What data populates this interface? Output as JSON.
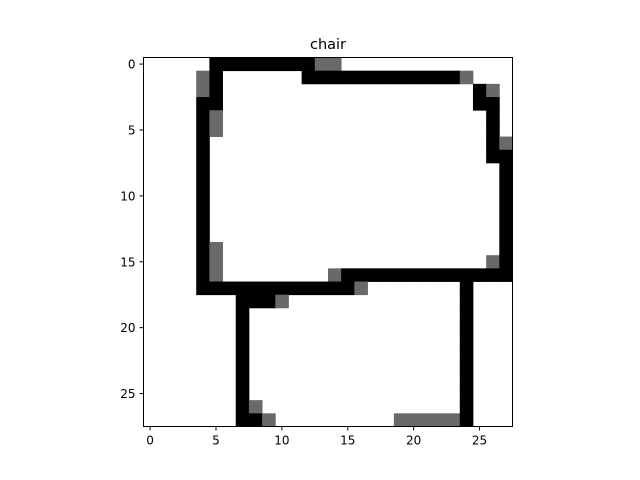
{
  "chart_data": {
    "type": "heatmap",
    "title": "chair",
    "xlabel": "",
    "ylabel": "",
    "grid": false,
    "colormap": "gray_r",
    "value_range": [
      0,
      255
    ],
    "grid_shape": [
      28,
      28
    ],
    "xlim": [
      -0.5,
      27.5
    ],
    "ylim": [
      27.5,
      -0.5
    ],
    "x_ticks": [
      0,
      5,
      10,
      15,
      20,
      25
    ],
    "y_ticks": [
      0,
      5,
      10,
      15,
      20,
      25
    ],
    "colors": {
      "full": "#000000",
      "partial": "#666666",
      "background": "#ffffff",
      "axis": "#000000"
    },
    "cells": [
      {
        "r": 0,
        "c": 5,
        "v": 255
      },
      {
        "r": 0,
        "c": 6,
        "v": 255
      },
      {
        "r": 0,
        "c": 7,
        "v": 255
      },
      {
        "r": 0,
        "c": 8,
        "v": 255
      },
      {
        "r": 0,
        "c": 9,
        "v": 255
      },
      {
        "r": 0,
        "c": 10,
        "v": 255
      },
      {
        "r": 0,
        "c": 11,
        "v": 255
      },
      {
        "r": 0,
        "c": 12,
        "v": 255
      },
      {
        "r": 0,
        "c": 13,
        "v": 150
      },
      {
        "r": 0,
        "c": 14,
        "v": 150
      },
      {
        "r": 1,
        "c": 4,
        "v": 150
      },
      {
        "r": 1,
        "c": 5,
        "v": 255
      },
      {
        "r": 1,
        "c": 12,
        "v": 255
      },
      {
        "r": 1,
        "c": 13,
        "v": 255
      },
      {
        "r": 1,
        "c": 14,
        "v": 255
      },
      {
        "r": 1,
        "c": 15,
        "v": 255
      },
      {
        "r": 1,
        "c": 16,
        "v": 255
      },
      {
        "r": 1,
        "c": 17,
        "v": 255
      },
      {
        "r": 1,
        "c": 18,
        "v": 255
      },
      {
        "r": 1,
        "c": 19,
        "v": 255
      },
      {
        "r": 1,
        "c": 20,
        "v": 255
      },
      {
        "r": 1,
        "c": 21,
        "v": 255
      },
      {
        "r": 1,
        "c": 22,
        "v": 255
      },
      {
        "r": 1,
        "c": 23,
        "v": 255
      },
      {
        "r": 1,
        "c": 24,
        "v": 150
      },
      {
        "r": 2,
        "c": 4,
        "v": 150
      },
      {
        "r": 2,
        "c": 5,
        "v": 255
      },
      {
        "r": 2,
        "c": 25,
        "v": 255
      },
      {
        "r": 2,
        "c": 26,
        "v": 150
      },
      {
        "r": 3,
        "c": 4,
        "v": 255
      },
      {
        "r": 3,
        "c": 5,
        "v": 255
      },
      {
        "r": 3,
        "c": 25,
        "v": 255
      },
      {
        "r": 3,
        "c": 26,
        "v": 255
      },
      {
        "r": 4,
        "c": 4,
        "v": 255
      },
      {
        "r": 4,
        "c": 5,
        "v": 150
      },
      {
        "r": 4,
        "c": 26,
        "v": 255
      },
      {
        "r": 5,
        "c": 4,
        "v": 255
      },
      {
        "r": 5,
        "c": 5,
        "v": 150
      },
      {
        "r": 5,
        "c": 26,
        "v": 255
      },
      {
        "r": 6,
        "c": 4,
        "v": 255
      },
      {
        "r": 6,
        "c": 26,
        "v": 255
      },
      {
        "r": 6,
        "c": 27,
        "v": 150
      },
      {
        "r": 7,
        "c": 4,
        "v": 255
      },
      {
        "r": 7,
        "c": 26,
        "v": 255
      },
      {
        "r": 7,
        "c": 27,
        "v": 255
      },
      {
        "r": 8,
        "c": 4,
        "v": 255
      },
      {
        "r": 8,
        "c": 27,
        "v": 255
      },
      {
        "r": 9,
        "c": 4,
        "v": 255
      },
      {
        "r": 9,
        "c": 27,
        "v": 255
      },
      {
        "r": 10,
        "c": 4,
        "v": 255
      },
      {
        "r": 10,
        "c": 27,
        "v": 255
      },
      {
        "r": 11,
        "c": 4,
        "v": 255
      },
      {
        "r": 11,
        "c": 27,
        "v": 255
      },
      {
        "r": 12,
        "c": 4,
        "v": 255
      },
      {
        "r": 12,
        "c": 27,
        "v": 255
      },
      {
        "r": 13,
        "c": 4,
        "v": 255
      },
      {
        "r": 13,
        "c": 27,
        "v": 255
      },
      {
        "r": 14,
        "c": 4,
        "v": 255
      },
      {
        "r": 14,
        "c": 5,
        "v": 150
      },
      {
        "r": 14,
        "c": 27,
        "v": 255
      },
      {
        "r": 15,
        "c": 4,
        "v": 255
      },
      {
        "r": 15,
        "c": 5,
        "v": 150
      },
      {
        "r": 15,
        "c": 26,
        "v": 150
      },
      {
        "r": 15,
        "c": 27,
        "v": 255
      },
      {
        "r": 16,
        "c": 4,
        "v": 255
      },
      {
        "r": 16,
        "c": 5,
        "v": 150
      },
      {
        "r": 16,
        "c": 14,
        "v": 150
      },
      {
        "r": 16,
        "c": 15,
        "v": 255
      },
      {
        "r": 16,
        "c": 16,
        "v": 255
      },
      {
        "r": 16,
        "c": 17,
        "v": 255
      },
      {
        "r": 16,
        "c": 18,
        "v": 255
      },
      {
        "r": 16,
        "c": 19,
        "v": 255
      },
      {
        "r": 16,
        "c": 20,
        "v": 255
      },
      {
        "r": 16,
        "c": 21,
        "v": 255
      },
      {
        "r": 16,
        "c": 22,
        "v": 255
      },
      {
        "r": 16,
        "c": 23,
        "v": 255
      },
      {
        "r": 16,
        "c": 24,
        "v": 255
      },
      {
        "r": 16,
        "c": 25,
        "v": 255
      },
      {
        "r": 16,
        "c": 26,
        "v": 255
      },
      {
        "r": 16,
        "c": 27,
        "v": 255
      },
      {
        "r": 17,
        "c": 4,
        "v": 255
      },
      {
        "r": 17,
        "c": 5,
        "v": 255
      },
      {
        "r": 17,
        "c": 6,
        "v": 255
      },
      {
        "r": 17,
        "c": 7,
        "v": 255
      },
      {
        "r": 17,
        "c": 8,
        "v": 255
      },
      {
        "r": 17,
        "c": 9,
        "v": 255
      },
      {
        "r": 17,
        "c": 10,
        "v": 255
      },
      {
        "r": 17,
        "c": 11,
        "v": 255
      },
      {
        "r": 17,
        "c": 12,
        "v": 255
      },
      {
        "r": 17,
        "c": 13,
        "v": 255
      },
      {
        "r": 17,
        "c": 14,
        "v": 255
      },
      {
        "r": 17,
        "c": 15,
        "v": 255
      },
      {
        "r": 17,
        "c": 16,
        "v": 150
      },
      {
        "r": 17,
        "c": 24,
        "v": 255
      },
      {
        "r": 18,
        "c": 7,
        "v": 255
      },
      {
        "r": 18,
        "c": 8,
        "v": 255
      },
      {
        "r": 18,
        "c": 9,
        "v": 255
      },
      {
        "r": 18,
        "c": 10,
        "v": 150
      },
      {
        "r": 18,
        "c": 24,
        "v": 255
      },
      {
        "r": 19,
        "c": 7,
        "v": 255
      },
      {
        "r": 19,
        "c": 24,
        "v": 255
      },
      {
        "r": 20,
        "c": 7,
        "v": 255
      },
      {
        "r": 20,
        "c": 24,
        "v": 255
      },
      {
        "r": 21,
        "c": 7,
        "v": 255
      },
      {
        "r": 21,
        "c": 24,
        "v": 255
      },
      {
        "r": 22,
        "c": 7,
        "v": 255
      },
      {
        "r": 22,
        "c": 24,
        "v": 255
      },
      {
        "r": 23,
        "c": 7,
        "v": 255
      },
      {
        "r": 23,
        "c": 24,
        "v": 255
      },
      {
        "r": 24,
        "c": 7,
        "v": 255
      },
      {
        "r": 24,
        "c": 24,
        "v": 255
      },
      {
        "r": 25,
        "c": 7,
        "v": 255
      },
      {
        "r": 25,
        "c": 24,
        "v": 255
      },
      {
        "r": 26,
        "c": 7,
        "v": 255
      },
      {
        "r": 26,
        "c": 8,
        "v": 150
      },
      {
        "r": 26,
        "c": 24,
        "v": 255
      },
      {
        "r": 27,
        "c": 7,
        "v": 255
      },
      {
        "r": 27,
        "c": 8,
        "v": 255
      },
      {
        "r": 27,
        "c": 9,
        "v": 150
      },
      {
        "r": 27,
        "c": 19,
        "v": 150
      },
      {
        "r": 27,
        "c": 20,
        "v": 150
      },
      {
        "r": 27,
        "c": 21,
        "v": 150
      },
      {
        "r": 27,
        "c": 22,
        "v": 150
      },
      {
        "r": 27,
        "c": 23,
        "v": 150
      },
      {
        "r": 27,
        "c": 24,
        "v": 255
      }
    ]
  }
}
